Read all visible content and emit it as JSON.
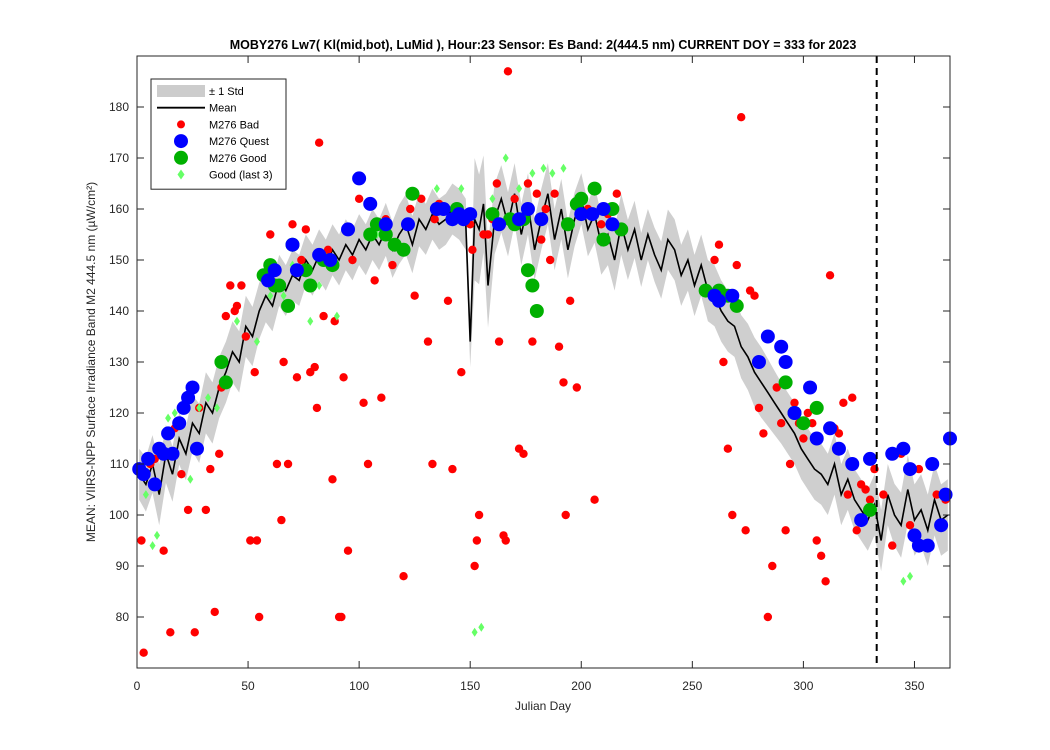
{
  "chart_data": {
    "type": "scatter",
    "title": "MOBY276   Lw7( Kl(mid,bot), LuMid ),   Hour:23 Sensor: Es Band: 2(444.5 nm)   CURRENT DOY = 333 for 2023",
    "xlabel": "Julian Day",
    "ylabel": "MEAN: VIIRS-NPP Surface Irradiance Band M2 444.5 nm (µW/cm²)",
    "xlim": [
      0,
      366
    ],
    "ylim": [
      70,
      190
    ],
    "xticks": [
      0,
      50,
      100,
      150,
      200,
      250,
      300,
      350
    ],
    "yticks": [
      80,
      90,
      100,
      110,
      120,
      130,
      140,
      150,
      160,
      170,
      180
    ],
    "current_doy": 333,
    "legend_position": "top-left",
    "legend": [
      {
        "label": "± 1 Std",
        "kind": "patch",
        "color": "#cccccc"
      },
      {
        "label": "Mean",
        "kind": "line",
        "color": "#000000"
      },
      {
        "label": "M276 Bad",
        "kind": "dot",
        "color": "#ff0000"
      },
      {
        "label": "M276 Quest",
        "kind": "bigdot",
        "color": "#0000ff"
      },
      {
        "label": "M276 Good",
        "kind": "bigdot",
        "color": "#00b000"
      },
      {
        "label": "Good (last 3)",
        "kind": "diamond",
        "color": "#66ff66"
      }
    ],
    "mean_series": {
      "x": [
        1,
        4,
        7,
        10,
        13,
        16,
        19,
        22,
        25,
        28,
        31,
        34,
        37,
        40,
        43,
        46,
        49,
        52,
        55,
        58,
        61,
        64,
        67,
        70,
        73,
        76,
        79,
        82,
        85,
        88,
        91,
        94,
        97,
        100,
        103,
        106,
        109,
        112,
        115,
        118,
        121,
        124,
        127,
        130,
        133,
        136,
        139,
        142,
        145,
        148,
        150,
        152,
        154,
        156,
        158,
        161,
        164,
        167,
        170,
        173,
        176,
        179,
        182,
        185,
        188,
        191,
        194,
        197,
        200,
        203,
        206,
        209,
        212,
        215,
        218,
        221,
        224,
        227,
        230,
        233,
        236,
        239,
        242,
        245,
        248,
        251,
        254,
        257,
        260,
        263,
        266,
        269,
        272,
        275,
        278,
        281,
        284,
        287,
        290,
        293,
        296,
        299,
        302,
        305,
        308,
        311,
        314,
        317,
        320,
        323,
        326,
        329,
        332,
        335,
        338,
        341,
        344,
        347,
        350,
        353,
        356,
        359,
        362,
        365
      ],
      "y": [
        108,
        106,
        110,
        104,
        112,
        108,
        115,
        112,
        118,
        116,
        122,
        120,
        125,
        128,
        132,
        130,
        137,
        135,
        140,
        143,
        141,
        146,
        144,
        147,
        146,
        150,
        148,
        151,
        149,
        152,
        150,
        153,
        151,
        154,
        152,
        155,
        153,
        156,
        152,
        155,
        157,
        153,
        158,
        156,
        159,
        157,
        158,
        160,
        159,
        157,
        134,
        158,
        156,
        161,
        145,
        158,
        162,
        157,
        163,
        155,
        161,
        152,
        158,
        163,
        154,
        160,
        152,
        158,
        162,
        156,
        159,
        153,
        155,
        150,
        157,
        152,
        156,
        150,
        155,
        151,
        148,
        154,
        152,
        147,
        150,
        145,
        149,
        144,
        143,
        140,
        138,
        137,
        133,
        131,
        128,
        126,
        124,
        122,
        120,
        118,
        116,
        113,
        111,
        109,
        108,
        106,
        110,
        104,
        107,
        103,
        101,
        99,
        102,
        95,
        104,
        100,
        98,
        105,
        99,
        101,
        97,
        103,
        99,
        100
      ]
    },
    "std_series": {
      "x": [
        1,
        10,
        20,
        30,
        40,
        50,
        60,
        70,
        80,
        90,
        100,
        110,
        120,
        130,
        140,
        150,
        152,
        160,
        170,
        180,
        190,
        200,
        210,
        220,
        230,
        240,
        250,
        260,
        270,
        280,
        290,
        300,
        310,
        320,
        330,
        340,
        350,
        365
      ],
      "std": [
        5,
        6,
        5,
        6,
        6,
        6,
        5,
        5,
        5,
        5,
        5,
        5,
        6,
        5,
        5,
        5,
        12,
        7,
        6,
        6,
        6,
        5,
        6,
        6,
        5,
        6,
        6,
        6,
        6,
        7,
        6,
        6,
        6,
        6,
        6,
        6,
        7,
        7
      ]
    },
    "bad_points": {
      "x": [
        2,
        3,
        6,
        8,
        12,
        15,
        17,
        20,
        23,
        26,
        28,
        31,
        33,
        35,
        37,
        38,
        40,
        42,
        44,
        45,
        47,
        49,
        51,
        53,
        54,
        55,
        57,
        60,
        63,
        65,
        66,
        68,
        70,
        72,
        74,
        76,
        78,
        80,
        81,
        82,
        84,
        86,
        88,
        89,
        91,
        92,
        93,
        95,
        97,
        100,
        102,
        104,
        107,
        110,
        112,
        115,
        120,
        123,
        125,
        128,
        131,
        133,
        134,
        136,
        140,
        142,
        144,
        146,
        150,
        151,
        152,
        153,
        154,
        156,
        158,
        160,
        162,
        163,
        165,
        166,
        167,
        170,
        172,
        174,
        176,
        178,
        180,
        182,
        184,
        186,
        188,
        190,
        192,
        193,
        195,
        198,
        200,
        203,
        206,
        209,
        212,
        216,
        260,
        262,
        264,
        266,
        268,
        270,
        272,
        274,
        276,
        278,
        280,
        282,
        284,
        286,
        288,
        290,
        292,
        294,
        296,
        298,
        300,
        302,
        304,
        306,
        308,
        310,
        312,
        314,
        316,
        318,
        320,
        322,
        324,
        326,
        328,
        330,
        332,
        336,
        340,
        344,
        348,
        352,
        356,
        360,
        364
      ],
      "y": [
        95,
        73,
        110,
        111,
        93,
        77,
        117,
        108,
        101,
        77,
        121,
        101,
        109,
        81,
        112,
        125,
        139,
        145,
        140,
        141,
        145,
        135,
        95,
        128,
        95,
        80,
        147,
        155,
        110,
        99,
        130,
        110,
        157,
        127,
        150,
        156,
        128,
        129,
        121,
        173,
        139,
        152,
        107,
        138,
        80,
        80,
        127,
        93,
        150,
        162,
        122,
        110,
        146,
        123,
        158,
        149,
        88,
        160,
        143,
        162,
        134,
        110,
        158,
        161,
        142,
        109,
        159,
        128,
        157,
        152,
        90,
        95,
        100,
        155,
        155,
        158,
        165,
        134,
        96,
        95,
        187,
        162,
        113,
        112,
        165,
        134,
        163,
        154,
        160,
        150,
        163,
        133,
        126,
        100,
        142,
        125,
        162,
        160,
        103,
        157,
        159,
        163,
        150,
        153,
        130,
        113,
        100,
        149,
        178,
        97,
        144,
        143,
        121,
        116,
        80,
        90,
        125,
        118,
        97,
        110,
        122,
        118,
        115,
        120,
        118,
        95,
        92,
        87,
        147,
        117,
        116,
        122,
        104,
        123,
        97,
        106,
        105,
        103,
        109,
        104,
        94,
        112,
        98,
        109,
        94,
        104,
        103
      ]
    },
    "quest_points": {
      "x": [
        1,
        3,
        5,
        8,
        10,
        12,
        14,
        16,
        19,
        21,
        23,
        25,
        27,
        59,
        62,
        70,
        72,
        82,
        87,
        95,
        100,
        105,
        112,
        122,
        135,
        138,
        142,
        145,
        147,
        150,
        163,
        172,
        176,
        182,
        200,
        205,
        210,
        214,
        260,
        262,
        268,
        280,
        284,
        290,
        292,
        296,
        303,
        306,
        312,
        316,
        322,
        326,
        330,
        340,
        345,
        348,
        350,
        352,
        356,
        358,
        362,
        364,
        366
      ],
      "y": [
        109,
        108,
        111,
        106,
        113,
        112,
        116,
        112,
        118,
        121,
        123,
        125,
        113,
        146,
        148,
        153,
        148,
        151,
        150,
        156,
        166,
        161,
        157,
        157,
        160,
        160,
        158,
        159,
        158,
        159,
        157,
        158,
        160,
        158,
        159,
        159,
        160,
        157,
        143,
        142,
        143,
        130,
        135,
        133,
        130,
        120,
        125,
        115,
        117,
        113,
        110,
        99,
        111,
        112,
        113,
        109,
        96,
        94,
        94,
        110,
        98,
        104,
        115
      ]
    },
    "good_points": {
      "x": [
        38,
        40,
        57,
        60,
        62,
        64,
        68,
        70,
        76,
        78,
        84,
        88,
        105,
        108,
        112,
        116,
        120,
        124,
        144,
        160,
        168,
        170,
        174,
        176,
        178,
        180,
        194,
        198,
        200,
        206,
        210,
        214,
        218,
        256,
        262,
        266,
        270,
        292,
        296,
        300,
        306,
        330
      ],
      "y": [
        130,
        126,
        147,
        149,
        145,
        145,
        141,
        153,
        148,
        145,
        150,
        149,
        155,
        157,
        155,
        153,
        152,
        163,
        160,
        159,
        158,
        157,
        158,
        148,
        145,
        140,
        157,
        161,
        162,
        164,
        154,
        160,
        156,
        144,
        144,
        143,
        141,
        126,
        120,
        118,
        121,
        101
      ]
    },
    "good_last3_points": {
      "x": [
        4,
        7,
        9,
        14,
        17,
        20,
        24,
        28,
        32,
        36,
        45,
        54,
        60,
        66,
        70,
        78,
        82,
        90,
        108,
        121,
        135,
        146,
        152,
        155,
        160,
        166,
        172,
        178,
        183,
        187,
        192,
        345,
        348
      ],
      "y": [
        104,
        94,
        96,
        119,
        120,
        118,
        107,
        121,
        123,
        121,
        138,
        134,
        143,
        143,
        149,
        138,
        145,
        139,
        155,
        157,
        164,
        164,
        77,
        78,
        162,
        170,
        164,
        167,
        168,
        167,
        168,
        87,
        88
      ]
    }
  }
}
